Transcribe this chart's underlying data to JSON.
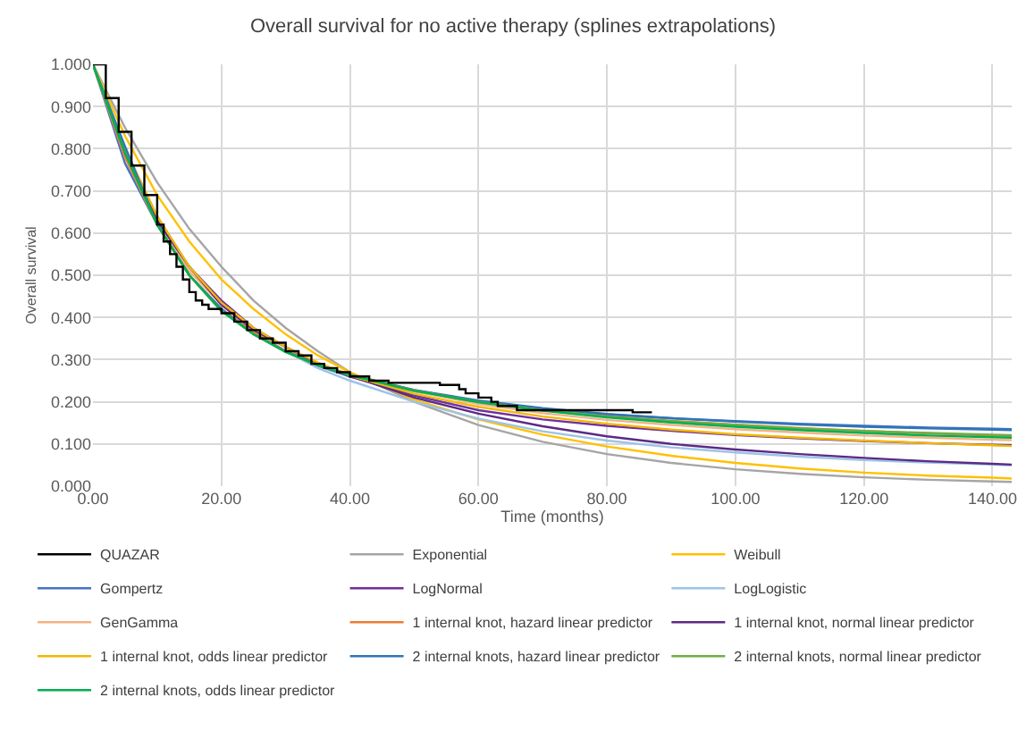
{
  "chart_data": {
    "type": "line",
    "title": "Overall survival for no active therapy (splines extrapolations)",
    "xlabel": "Time (months)",
    "ylabel": "Overall survival",
    "x": [
      0,
      5,
      10,
      15,
      20,
      25,
      30,
      35,
      40,
      50,
      60,
      70,
      80,
      90,
      100,
      110,
      120,
      130,
      140,
      143
    ],
    "xlim": [
      0,
      143
    ],
    "ylim": [
      0,
      1
    ],
    "xticks": [
      {
        "value": 0,
        "label": "0.00"
      },
      {
        "value": 20,
        "label": "20.00"
      },
      {
        "value": 40,
        "label": "40.00"
      },
      {
        "value": 60,
        "label": "60.00"
      },
      {
        "value": 80,
        "label": "80.00"
      },
      {
        "value": 100,
        "label": "100.00"
      },
      {
        "value": 120,
        "label": "120.00"
      },
      {
        "value": 140,
        "label": "140.00"
      }
    ],
    "yticks": [
      {
        "value": 0,
        "label": "0.000"
      },
      {
        "value": 0.1,
        "label": "0.100"
      },
      {
        "value": 0.2,
        "label": "0.200"
      },
      {
        "value": 0.3,
        "label": "0.300"
      },
      {
        "value": 0.4,
        "label": "0.400"
      },
      {
        "value": 0.5,
        "label": "0.500"
      },
      {
        "value": 0.6,
        "label": "0.600"
      },
      {
        "value": 0.7,
        "label": "0.700"
      },
      {
        "value": 0.8,
        "label": "0.800"
      },
      {
        "value": 0.9,
        "label": "0.900"
      },
      {
        "value": 1,
        "label": "1.000"
      }
    ],
    "grid": true,
    "legend": "bottom",
    "line_style": "solid",
    "marker": "none",
    "series": [
      {
        "name": "QUAZAR",
        "color": "#000000",
        "type": "step",
        "x": [
          0,
          2,
          4,
          6,
          8,
          10,
          11,
          12,
          13,
          14,
          15,
          16,
          17,
          18,
          20,
          22,
          24,
          26,
          28,
          30,
          32,
          34,
          36,
          38,
          40,
          43,
          46,
          50,
          54,
          57,
          58,
          60,
          62,
          63,
          66,
          70,
          75,
          80,
          84,
          87
        ],
        "values": [
          1,
          0.92,
          0.84,
          0.76,
          0.69,
          0.62,
          0.58,
          0.55,
          0.52,
          0.49,
          0.46,
          0.44,
          0.43,
          0.42,
          0.41,
          0.39,
          0.37,
          0.35,
          0.34,
          0.32,
          0.31,
          0.29,
          0.28,
          0.27,
          0.26,
          0.25,
          0.245,
          0.245,
          0.24,
          0.23,
          0.22,
          0.21,
          0.2,
          0.19,
          0.18,
          0.18,
          0.18,
          0.18,
          0.175,
          0.175
        ]
      },
      {
        "name": "Exponential",
        "color": "#a5a5a5",
        "values": [
          1,
          0.85,
          0.72,
          0.61,
          0.52,
          0.44,
          0.375,
          0.32,
          0.27,
          0.2,
          0.145,
          0.105,
          0.076,
          0.055,
          0.04,
          0.029,
          0.021,
          0.015,
          0.011,
          0.01
        ]
      },
      {
        "name": "Weibull",
        "color": "#ffc000",
        "values": [
          1,
          0.83,
          0.69,
          0.58,
          0.49,
          0.42,
          0.36,
          0.31,
          0.27,
          0.205,
          0.158,
          0.122,
          0.094,
          0.072,
          0.055,
          0.042,
          0.032,
          0.025,
          0.02,
          0.018
        ]
      },
      {
        "name": "Gompertz",
        "color": "#4472c4",
        "values": [
          1,
          0.765,
          0.62,
          0.5,
          0.42,
          0.36,
          0.32,
          0.285,
          0.26,
          0.225,
          0.2,
          0.183,
          0.17,
          0.161,
          0.154,
          0.148,
          0.143,
          0.139,
          0.136,
          0.135
        ]
      },
      {
        "name": "LogNormal",
        "color": "#7030a0",
        "values": [
          1,
          0.79,
          0.63,
          0.52,
          0.44,
          0.375,
          0.33,
          0.29,
          0.26,
          0.215,
          0.18,
          0.158,
          0.143,
          0.131,
          0.121,
          0.113,
          0.107,
          0.102,
          0.098,
          0.097
        ]
      },
      {
        "name": "LogLogistic",
        "color": "#9dc3e6",
        "values": [
          1,
          0.8,
          0.64,
          0.52,
          0.43,
          0.37,
          0.32,
          0.28,
          0.25,
          0.2,
          0.16,
          0.13,
          0.108,
          0.092,
          0.08,
          0.07,
          0.062,
          0.056,
          0.051,
          0.049
        ]
      },
      {
        "name": "GenGamma",
        "color": "#f4b183",
        "values": [
          1,
          0.78,
          0.62,
          0.51,
          0.43,
          0.37,
          0.33,
          0.29,
          0.265,
          0.225,
          0.195,
          0.173,
          0.157,
          0.145,
          0.135,
          0.127,
          0.12,
          0.115,
          0.11,
          0.109
        ]
      },
      {
        "name": "1 internal knot, hazard linear predictor",
        "color": "#ed7d31",
        "values": [
          1,
          0.78,
          0.62,
          0.5,
          0.42,
          0.365,
          0.32,
          0.29,
          0.265,
          0.228,
          0.2,
          0.18,
          0.166,
          0.155,
          0.146,
          0.138,
          0.131,
          0.125,
          0.12,
          0.119
        ]
      },
      {
        "name": "1 internal knot, normal linear predictor",
        "color": "#5b2a86",
        "values": [
          1,
          0.79,
          0.63,
          0.52,
          0.43,
          0.37,
          0.33,
          0.29,
          0.262,
          0.21,
          0.172,
          0.142,
          0.118,
          0.1,
          0.087,
          0.076,
          0.067,
          0.059,
          0.053,
          0.051
        ]
      },
      {
        "name": "1 internal knot, odds linear predictor",
        "color": "#f2b800",
        "values": [
          1,
          0.8,
          0.64,
          0.52,
          0.435,
          0.375,
          0.33,
          0.293,
          0.262,
          0.219,
          0.188,
          0.165,
          0.148,
          0.134,
          0.123,
          0.115,
          0.108,
          0.102,
          0.097,
          0.095
        ]
      },
      {
        "name": "2 internal knots, hazard linear predictor",
        "color": "#2e75b6",
        "values": [
          1,
          0.805,
          0.62,
          0.5,
          0.42,
          0.36,
          0.32,
          0.288,
          0.264,
          0.228,
          0.203,
          0.185,
          0.171,
          0.161,
          0.153,
          0.146,
          0.141,
          0.137,
          0.134,
          0.133
        ]
      },
      {
        "name": "2 internal knots, normal linear predictor",
        "color": "#70ad47",
        "values": [
          1,
          0.79,
          0.62,
          0.5,
          0.415,
          0.36,
          0.318,
          0.287,
          0.263,
          0.227,
          0.2,
          0.18,
          0.165,
          0.154,
          0.145,
          0.137,
          0.131,
          0.126,
          0.122,
          0.121
        ]
      },
      {
        "name": "2 internal knots, odds linear predictor",
        "color": "#00b050",
        "values": [
          1,
          0.79,
          0.62,
          0.5,
          0.415,
          0.36,
          0.318,
          0.287,
          0.263,
          0.226,
          0.199,
          0.179,
          0.163,
          0.151,
          0.141,
          0.133,
          0.126,
          0.12,
          0.116,
          0.115
        ]
      }
    ]
  }
}
